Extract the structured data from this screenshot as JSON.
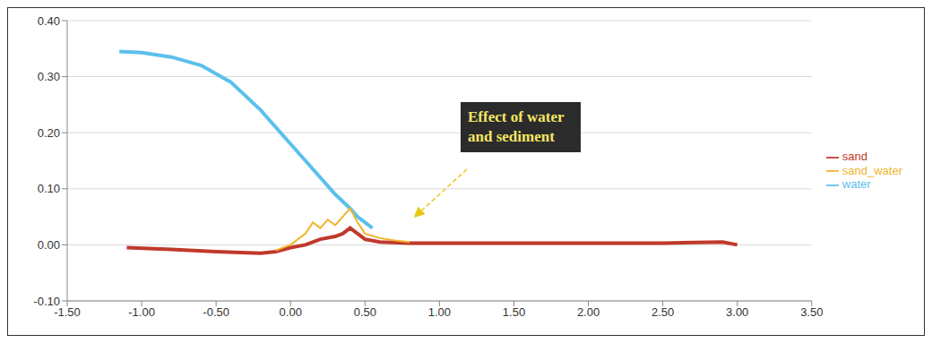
{
  "chart_data": {
    "type": "line",
    "annotations": [
      {
        "text": "Effect of water and sediment"
      }
    ],
    "xlim": [
      -1.5,
      3.5
    ],
    "xticks": [
      {
        "value": -1.5,
        "label": "-1.50"
      },
      {
        "value": -1,
        "label": "-1.00"
      },
      {
        "value": -0.5,
        "label": "-0.50"
      },
      {
        "value": 0,
        "label": "0.00"
      },
      {
        "value": 0.5,
        "label": "0.50"
      },
      {
        "value": 1,
        "label": "1.00"
      },
      {
        "value": 1.5,
        "label": "1.50"
      },
      {
        "value": 2,
        "label": "2.00"
      },
      {
        "value": 2.5,
        "label": "2.50"
      },
      {
        "value": 3,
        "label": "3.00"
      },
      {
        "value": 3.5,
        "label": "3.50"
      }
    ],
    "ylim": [
      -0.1,
      0.4
    ],
    "yticks": [
      {
        "value": -0.1,
        "label": "-0.10"
      },
      {
        "value": 0,
        "label": "0.00"
      },
      {
        "value": 0.1,
        "label": "0.10"
      },
      {
        "value": 0.2,
        "label": "0.20"
      },
      {
        "value": 0.3,
        "label": "0.30"
      },
      {
        "value": 0.4,
        "label": "0.40"
      }
    ],
    "grid": true,
    "legend": "right",
    "series": [
      {
        "name": "sand",
        "color": "#c0392b",
        "x": [
          -1.1,
          -0.8,
          -0.5,
          -0.2,
          -0.1,
          0.0,
          0.1,
          0.2,
          0.3,
          0.35,
          0.4,
          0.45,
          0.5,
          0.6,
          0.8,
          1.0,
          1.5,
          2.0,
          2.5,
          2.9,
          3.0
        ],
        "values": [
          -0.005,
          -0.008,
          -0.012,
          -0.015,
          -0.012,
          -0.005,
          0.0,
          0.01,
          0.015,
          0.02,
          0.03,
          0.02,
          0.01,
          0.005,
          0.003,
          0.003,
          0.003,
          0.003,
          0.003,
          0.005,
          0.0
        ]
      },
      {
        "name": "water",
        "color": "#5bc0eb",
        "x": [
          -1.15,
          -1.0,
          -0.8,
          -0.6,
          -0.4,
          -0.2,
          0.0,
          0.1,
          0.2,
          0.3,
          0.4,
          0.45,
          0.5,
          0.55
        ],
        "values": [
          0.345,
          0.343,
          0.335,
          0.32,
          0.29,
          0.24,
          0.18,
          0.15,
          0.12,
          0.09,
          0.065,
          0.05,
          0.04,
          0.03
        ]
      },
      {
        "name": "sand_water",
        "color": "#f0b429",
        "x": [
          -0.1,
          0.0,
          0.1,
          0.15,
          0.2,
          0.25,
          0.3,
          0.35,
          0.4,
          0.45,
          0.5,
          0.6,
          0.7,
          0.8
        ],
        "values": [
          -0.01,
          0.0,
          0.02,
          0.04,
          0.03,
          0.045,
          0.035,
          0.05,
          0.065,
          0.04,
          0.02,
          0.012,
          0.008,
          0.005
        ]
      }
    ]
  }
}
